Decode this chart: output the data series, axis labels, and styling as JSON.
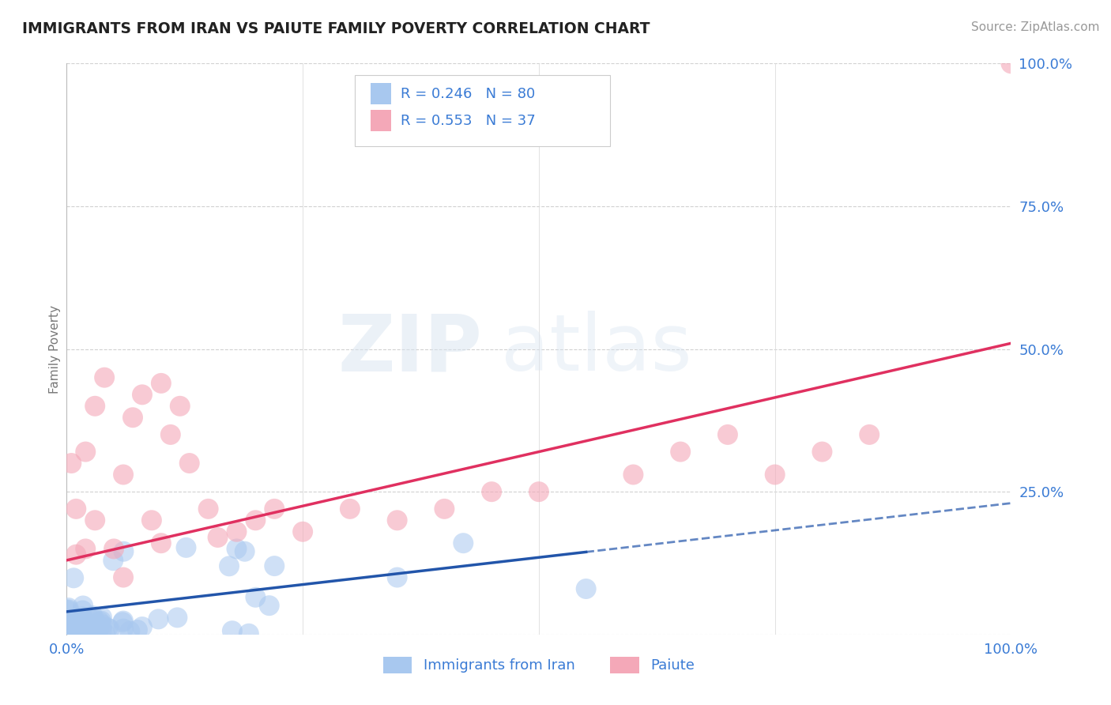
{
  "title": "IMMIGRANTS FROM IRAN VS PAIUTE FAMILY POVERTY CORRELATION CHART",
  "source": "Source: ZipAtlas.com",
  "ylabel": "Family Poverty",
  "xlim": [
    0,
    1
  ],
  "ylim": [
    0,
    1
  ],
  "xticks": [
    0.0,
    0.25,
    0.5,
    0.75,
    1.0
  ],
  "yticks": [
    0.0,
    0.25,
    0.5,
    0.75,
    1.0
  ],
  "xtick_labels": [
    "0.0%",
    "",
    "",
    "",
    "100.0%"
  ],
  "ytick_labels": [
    "",
    "25.0%",
    "50.0%",
    "75.0%",
    "100.0%"
  ],
  "blue_R": 0.246,
  "blue_N": 80,
  "pink_R": 0.553,
  "pink_N": 37,
  "blue_color": "#a8c8ef",
  "pink_color": "#f4a8b8",
  "blue_line_color": "#2255aa",
  "pink_line_color": "#e03060",
  "watermark_zip": "ZIP",
  "watermark_atlas": "atlas",
  "background_color": "#ffffff",
  "text_color_blue": "#3a7bd5",
  "text_color_dark": "#333333",
  "legend_text_color": "#333333",
  "blue_line_solid_end": 0.55,
  "pink_line_intercept": 0.13,
  "pink_line_slope": 0.38,
  "blue_line_intercept": 0.04,
  "blue_line_slope": 0.19
}
